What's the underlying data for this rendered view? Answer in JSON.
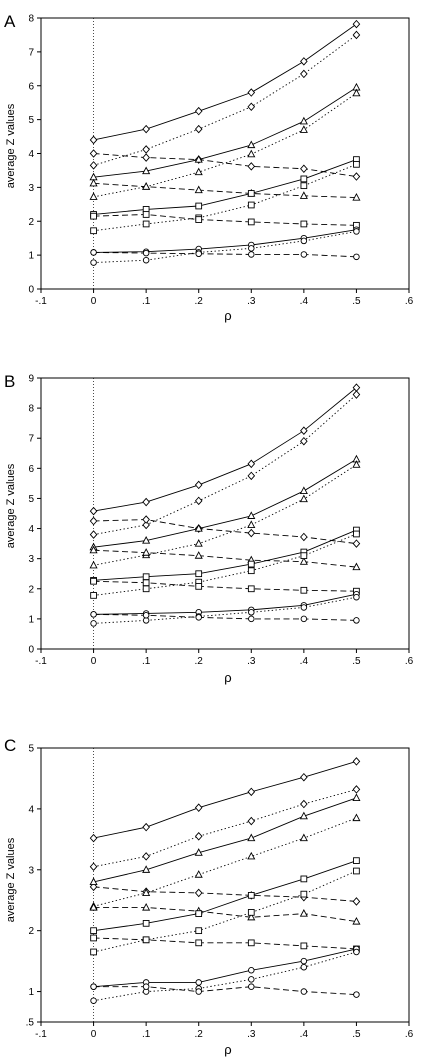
{
  "chart_data": [
    {
      "type": "line",
      "panel_label": "A",
      "xlabel": "ρ",
      "ylabel": "average Z values",
      "xlim": [
        -0.1,
        0.6
      ],
      "ylim": [
        0,
        8
      ],
      "xticks": [
        "-.1",
        "0",
        ".1",
        ".2",
        ".3",
        ".4",
        ".5",
        ".6"
      ],
      "yticks": [
        "0",
        "1",
        "2",
        "3",
        "4",
        "5",
        "6",
        "7",
        "8"
      ],
      "reference_line_x": 0,
      "grid": false,
      "x": [
        0,
        0.1,
        0.2,
        0.3,
        0.4,
        0.5
      ],
      "series": [
        {
          "marker": "diamond",
          "dash": "solid",
          "values": [
            4.4,
            4.72,
            5.25,
            5.8,
            6.72,
            7.82
          ]
        },
        {
          "marker": "diamond",
          "dash": "dotted",
          "values": [
            3.65,
            4.12,
            4.72,
            5.38,
            6.35,
            7.5
          ]
        },
        {
          "marker": "diamond",
          "dash": "dashed",
          "values": [
            4.0,
            3.88,
            3.82,
            3.62,
            3.55,
            3.32
          ]
        },
        {
          "marker": "triangle",
          "dash": "solid",
          "values": [
            3.3,
            3.48,
            3.82,
            4.25,
            4.95,
            5.95
          ]
        },
        {
          "marker": "triangle",
          "dash": "dotted",
          "values": [
            2.72,
            3.02,
            3.45,
            3.98,
            4.7,
            5.78
          ]
        },
        {
          "marker": "triangle",
          "dash": "dashed",
          "values": [
            3.12,
            3.02,
            2.92,
            2.82,
            2.75,
            2.7
          ]
        },
        {
          "marker": "square",
          "dash": "solid",
          "values": [
            2.2,
            2.35,
            2.45,
            2.82,
            3.25,
            3.82
          ]
        },
        {
          "marker": "square",
          "dash": "dotted",
          "values": [
            1.72,
            1.92,
            2.1,
            2.48,
            3.05,
            3.68
          ]
        },
        {
          "marker": "square",
          "dash": "dashed",
          "values": [
            2.15,
            2.2,
            2.05,
            1.98,
            1.92,
            1.88
          ]
        },
        {
          "marker": "circle",
          "dash": "solid",
          "values": [
            1.08,
            1.1,
            1.18,
            1.3,
            1.5,
            1.75
          ]
        },
        {
          "marker": "circle",
          "dash": "dotted",
          "values": [
            0.78,
            0.85,
            1.08,
            1.2,
            1.42,
            1.7
          ]
        },
        {
          "marker": "circle",
          "dash": "dashed",
          "values": [
            1.08,
            1.06,
            1.04,
            1.02,
            1.02,
            0.95
          ]
        }
      ]
    },
    {
      "type": "line",
      "panel_label": "B",
      "xlabel": "ρ",
      "ylabel": "average Z values",
      "xlim": [
        -0.1,
        0.6
      ],
      "ylim": [
        0,
        9
      ],
      "xticks": [
        "-.1",
        "0",
        ".1",
        ".2",
        ".3",
        ".4",
        ".5",
        ".6"
      ],
      "yticks": [
        "0",
        "1",
        "2",
        "3",
        "4",
        "5",
        "6",
        "7",
        "8",
        "9"
      ],
      "reference_line_x": 0,
      "grid": false,
      "x": [
        0,
        0.1,
        0.2,
        0.3,
        0.4,
        0.5
      ],
      "series": [
        {
          "marker": "diamond",
          "dash": "solid",
          "values": [
            4.58,
            4.88,
            5.45,
            6.15,
            7.25,
            8.68
          ]
        },
        {
          "marker": "diamond",
          "dash": "dotted",
          "values": [
            3.8,
            4.12,
            4.92,
            5.75,
            6.9,
            8.45
          ]
        },
        {
          "marker": "diamond",
          "dash": "dashed",
          "values": [
            4.25,
            4.3,
            4.0,
            3.85,
            3.72,
            3.5
          ]
        },
        {
          "marker": "triangle",
          "dash": "solid",
          "values": [
            3.38,
            3.6,
            4.0,
            4.42,
            5.25,
            6.3
          ]
        },
        {
          "marker": "triangle",
          "dash": "dotted",
          "values": [
            2.78,
            3.12,
            3.5,
            4.12,
            4.98,
            6.12
          ]
        },
        {
          "marker": "triangle",
          "dash": "dashed",
          "values": [
            3.28,
            3.2,
            3.1,
            2.95,
            2.9,
            2.72
          ]
        },
        {
          "marker": "square",
          "dash": "solid",
          "values": [
            2.28,
            2.4,
            2.5,
            2.82,
            3.22,
            3.95
          ]
        },
        {
          "marker": "square",
          "dash": "dotted",
          "values": [
            1.78,
            2.0,
            2.22,
            2.6,
            3.1,
            3.82
          ]
        },
        {
          "marker": "square",
          "dash": "dashed",
          "values": [
            2.25,
            2.2,
            2.08,
            2.0,
            1.95,
            1.92
          ]
        },
        {
          "marker": "circle",
          "dash": "solid",
          "values": [
            1.15,
            1.18,
            1.22,
            1.3,
            1.45,
            1.82
          ]
        },
        {
          "marker": "circle",
          "dash": "dotted",
          "values": [
            0.85,
            0.95,
            1.08,
            1.22,
            1.38,
            1.72
          ]
        },
        {
          "marker": "circle",
          "dash": "dashed",
          "values": [
            1.15,
            1.12,
            1.05,
            1.0,
            1.0,
            0.95
          ]
        }
      ]
    },
    {
      "type": "line",
      "panel_label": "C",
      "xlabel": "ρ",
      "ylabel": "average Z values",
      "xlim": [
        -0.1,
        0.6
      ],
      "ylim": [
        0.5,
        5
      ],
      "xticks": [
        "-.1",
        "0",
        ".1",
        ".2",
        ".3",
        ".4",
        ".5",
        ".6"
      ],
      "yticks": [
        ".5",
        "1",
        "2",
        "3",
        "4",
        "5"
      ],
      "reference_line_x": 0,
      "grid": false,
      "x": [
        0,
        0.1,
        0.2,
        0.3,
        0.4,
        0.5
      ],
      "series": [
        {
          "marker": "diamond",
          "dash": "solid",
          "values": [
            3.52,
            3.7,
            4.02,
            4.28,
            4.52,
            4.78
          ]
        },
        {
          "marker": "diamond",
          "dash": "dotted",
          "values": [
            3.05,
            3.22,
            3.55,
            3.8,
            4.08,
            4.32
          ]
        },
        {
          "marker": "diamond",
          "dash": "dashed",
          "values": [
            2.72,
            2.64,
            2.62,
            2.58,
            2.55,
            2.48
          ]
        },
        {
          "marker": "triangle",
          "dash": "solid",
          "values": [
            2.8,
            3.0,
            3.28,
            3.52,
            3.88,
            4.18
          ]
        },
        {
          "marker": "triangle",
          "dash": "dotted",
          "values": [
            2.4,
            2.62,
            2.92,
            3.22,
            3.52,
            3.85
          ]
        },
        {
          "marker": "triangle",
          "dash": "dashed",
          "values": [
            2.38,
            2.38,
            2.32,
            2.22,
            2.28,
            2.15
          ]
        },
        {
          "marker": "square",
          "dash": "solid",
          "values": [
            2.0,
            2.12,
            2.28,
            2.58,
            2.85,
            3.15
          ]
        },
        {
          "marker": "square",
          "dash": "dotted",
          "values": [
            1.65,
            1.85,
            2.0,
            2.3,
            2.6,
            2.98
          ]
        },
        {
          "marker": "square",
          "dash": "dashed",
          "values": [
            1.88,
            1.85,
            1.8,
            1.8,
            1.75,
            1.7
          ]
        },
        {
          "marker": "circle",
          "dash": "solid",
          "values": [
            1.08,
            1.15,
            1.15,
            1.35,
            1.5,
            1.7
          ]
        },
        {
          "marker": "circle",
          "dash": "dotted",
          "values": [
            0.85,
            1.0,
            1.05,
            1.2,
            1.4,
            1.65
          ]
        },
        {
          "marker": "circle",
          "dash": "dashed",
          "values": [
            1.08,
            1.08,
            1.0,
            1.08,
            1.0,
            0.95
          ]
        }
      ]
    }
  ]
}
